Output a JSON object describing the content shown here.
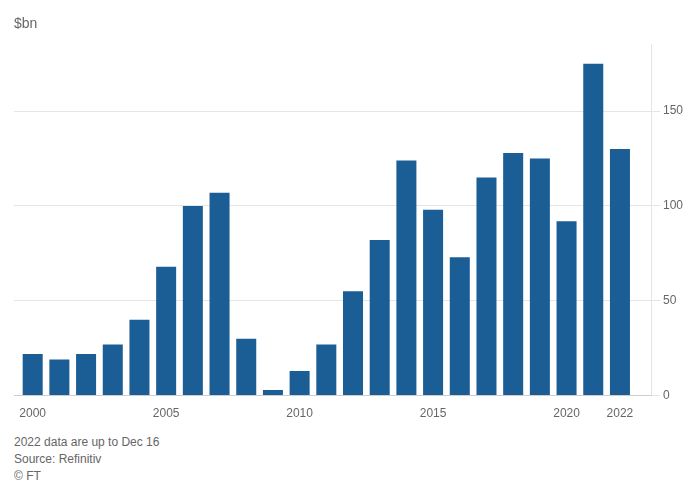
{
  "chart_data": {
    "type": "bar",
    "ylabel": "$bn",
    "x": [
      2000,
      2001,
      2002,
      2003,
      2004,
      2005,
      2006,
      2007,
      2008,
      2009,
      2010,
      2011,
      2012,
      2013,
      2014,
      2015,
      2016,
      2017,
      2018,
      2019,
      2020,
      2021,
      2022
    ],
    "values": [
      22,
      19,
      22,
      27,
      40,
      68,
      100,
      107,
      30,
      3,
      13,
      27,
      55,
      82,
      124,
      98,
      73,
      115,
      128,
      125,
      92,
      175,
      130
    ],
    "color": "#1B5E96",
    "xlim": [
      1999.3,
      2023.2
    ],
    "xticks": [
      2000,
      2005,
      2010,
      2015,
      2020,
      2022
    ],
    "ylim": [
      0,
      185
    ],
    "yticks": [
      0,
      50,
      100,
      150
    ],
    "grid": true,
    "annotations": [
      "2022 data are up to Dec 16",
      "Source: Refinitiv",
      "© FT"
    ]
  }
}
